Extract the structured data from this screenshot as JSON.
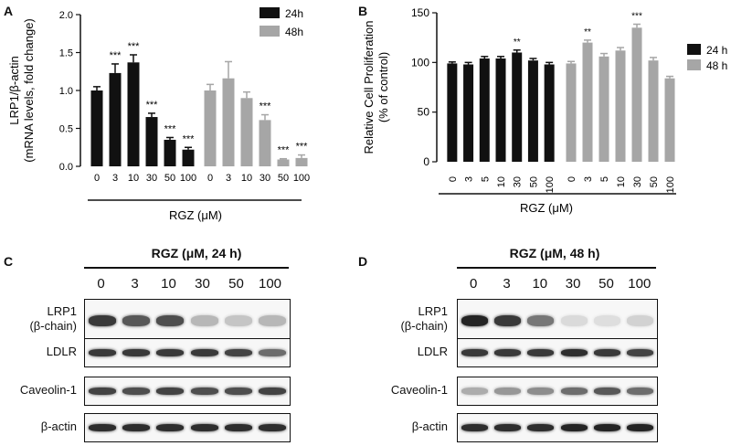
{
  "panels": {
    "A": "A",
    "B": "B",
    "C": "C",
    "D": "D"
  },
  "chart_data": [
    {
      "panel": "A",
      "type": "bar",
      "title": "",
      "ylabel_line1": "LRP1/β-actin",
      "ylabel_line2": "(mRNA levels, fold change)",
      "xlabel": "RGZ (μM)",
      "ylim": [
        0,
        2.0
      ],
      "yticks": [
        "0.0",
        "0.5",
        "1.0",
        "1.5",
        "2.0"
      ],
      "categories": [
        "0",
        "3",
        "10",
        "30",
        "50",
        "100"
      ],
      "legend_position": "top-right",
      "series": [
        {
          "name": "24h",
          "color": "#111111",
          "values": [
            1.0,
            1.23,
            1.37,
            0.65,
            0.35,
            0.22
          ],
          "errors": [
            0.05,
            0.12,
            0.1,
            0.05,
            0.03,
            0.03
          ],
          "sig": [
            "",
            "***",
            "***",
            "***",
            "***",
            "***"
          ]
        },
        {
          "name": "48h",
          "color": "#a6a6a6",
          "values": [
            1.0,
            1.16,
            0.9,
            0.61,
            0.09,
            0.11
          ],
          "errors": [
            0.08,
            0.22,
            0.08,
            0.07,
            0.01,
            0.04
          ],
          "sig": [
            "",
            "",
            "",
            "***",
            "***",
            "***"
          ]
        }
      ]
    },
    {
      "panel": "B",
      "type": "bar",
      "title": "",
      "ylabel_line1": "Relative Cell Proliferation",
      "ylabel_line2": "(% of control)",
      "xlabel": "RGZ (μM)",
      "ylim": [
        0,
        150
      ],
      "yticks": [
        "0",
        "50",
        "100",
        "150"
      ],
      "categories": [
        "0",
        "3",
        "5",
        "10",
        "30",
        "50",
        "100"
      ],
      "legend_position": "right",
      "series": [
        {
          "name": "24 h",
          "color": "#111111",
          "values": [
            99,
            98,
            104,
            104,
            110,
            102,
            98
          ],
          "errors": [
            1.5,
            2,
            2,
            2,
            2.5,
            2,
            2
          ],
          "sig": [
            "",
            "",
            "",
            "",
            "**",
            "",
            ""
          ]
        },
        {
          "name": "48 h",
          "color": "#a6a6a6",
          "values": [
            99,
            120,
            106,
            112,
            135,
            102,
            84
          ],
          "errors": [
            2,
            2.5,
            3,
            3,
            3.5,
            3,
            2
          ],
          "sig": [
            "",
            "**",
            "",
            "",
            "***",
            "",
            ""
          ]
        }
      ]
    }
  ],
  "blots": {
    "C": {
      "header": "RGZ (μM, 24 h)",
      "lanes": [
        "0",
        "3",
        "10",
        "30",
        "50",
        "100"
      ],
      "rows": [
        {
          "label_line1": "LRP1",
          "label_line2": "(β-chain)",
          "intensity": [
            0.85,
            0.7,
            0.75,
            0.25,
            0.18,
            0.25
          ]
        },
        {
          "label_line1": "LDLR",
          "label_line2": "",
          "intensity": [
            0.85,
            0.85,
            0.85,
            0.85,
            0.8,
            0.6
          ]
        },
        {
          "label_line1": "Caveolin-1",
          "label_line2": "",
          "intensity": [
            0.8,
            0.75,
            0.8,
            0.75,
            0.75,
            0.8
          ]
        },
        {
          "label_line1": "β-actin",
          "label_line2": "",
          "intensity": [
            0.9,
            0.9,
            0.9,
            0.9,
            0.9,
            0.9
          ]
        }
      ]
    },
    "D": {
      "header": "RGZ (μM, 48 h)",
      "lanes": [
        "0",
        "3",
        "10",
        "30",
        "50",
        "100"
      ],
      "rows": [
        {
          "label_line1": "LRP1",
          "label_line2": "(β-chain)",
          "intensity": [
            0.95,
            0.85,
            0.55,
            0.08,
            0.06,
            0.12
          ]
        },
        {
          "label_line1": "LDLR",
          "label_line2": "",
          "intensity": [
            0.85,
            0.85,
            0.85,
            0.9,
            0.85,
            0.8
          ]
        },
        {
          "label_line1": "Caveolin-1",
          "label_line2": "",
          "intensity": [
            0.3,
            0.4,
            0.45,
            0.6,
            0.7,
            0.6
          ]
        },
        {
          "label_line1": "β-actin",
          "label_line2": "",
          "intensity": [
            0.9,
            0.9,
            0.9,
            0.95,
            0.95,
            0.95
          ]
        }
      ]
    }
  }
}
